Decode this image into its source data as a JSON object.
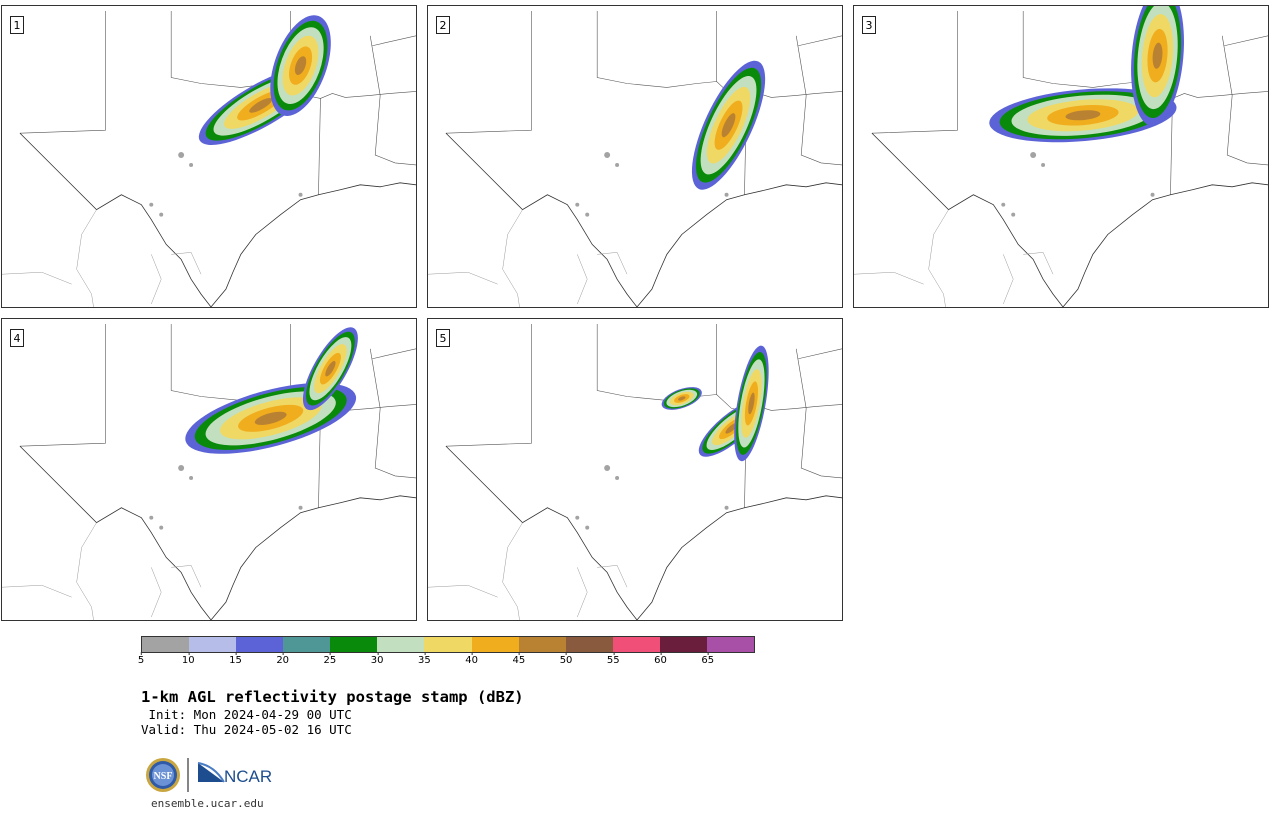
{
  "panels": [
    {
      "label": "1"
    },
    {
      "label": "2"
    },
    {
      "label": "3"
    },
    {
      "label": "4"
    },
    {
      "label": "5"
    }
  ],
  "colorbar": {
    "colors": [
      "#a3a3a3",
      "#b5bde8",
      "#5c63d6",
      "#4f9696",
      "#0a8a0a",
      "#c2e0c0",
      "#f0d864",
      "#f0ad1e",
      "#b98233",
      "#8a5a3e",
      "#f05078",
      "#6b1e3c",
      "#a850a8"
    ],
    "ticks": [
      "5",
      "10",
      "15",
      "20",
      "25",
      "30",
      "35",
      "40",
      "45",
      "50",
      "55",
      "60",
      "65"
    ]
  },
  "title": "1-km AGL reflectivity postage stamp (dBZ)",
  "init": " Init: Mon 2024-04-29 00 UTC",
  "valid": "Valid: Thu 2024-05-02 16 UTC",
  "logos": {
    "nsf": "NSF",
    "ncar": "NCAR"
  },
  "footer": "ensemble.ucar.edu"
}
